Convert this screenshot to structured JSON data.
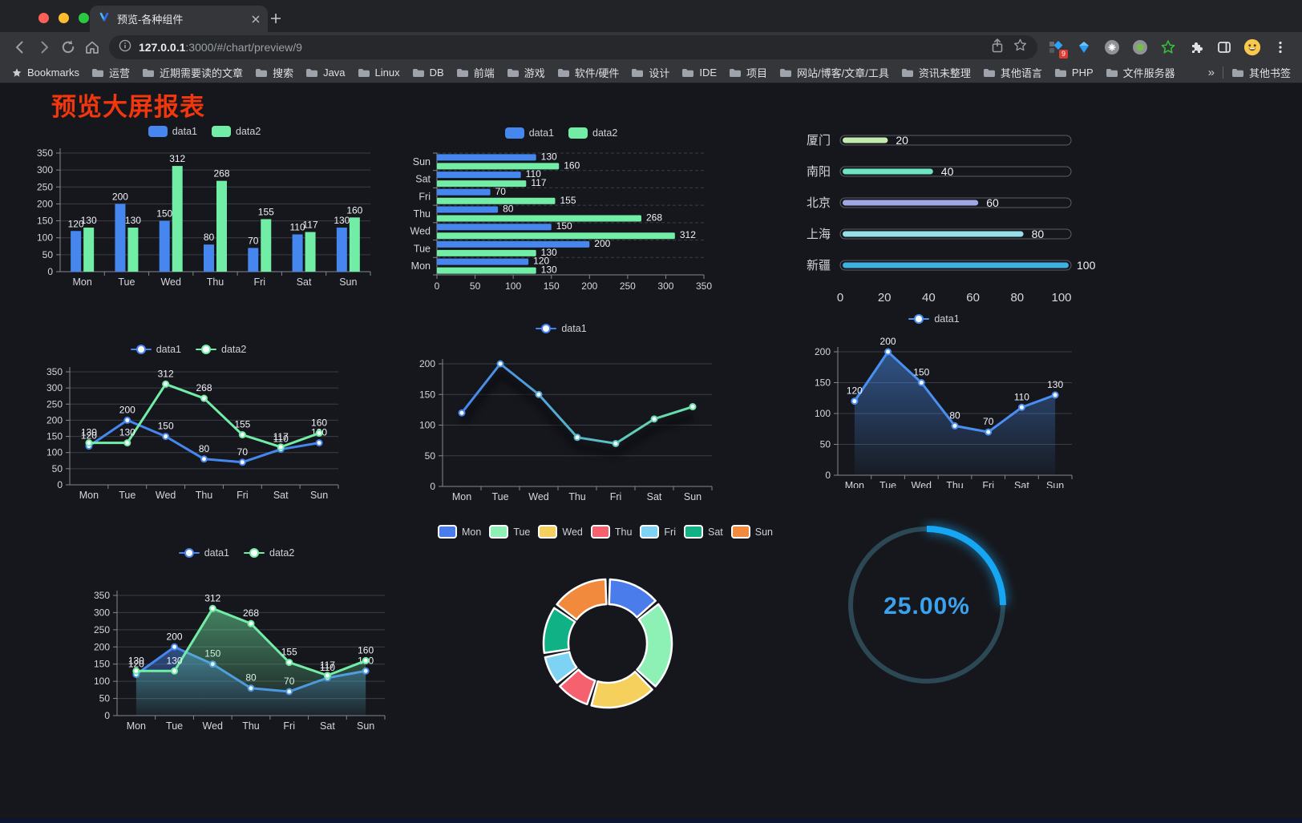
{
  "browser": {
    "tab_title": "预览-各种组件",
    "url_host": "127.0.0.1",
    "url_rest": ":3000/#/chart/preview/9",
    "bookmarks_label": "Bookmarks",
    "bookmarks": [
      "运营",
      "近期需要读的文章",
      "搜索",
      "Java",
      "Linux",
      "DB",
      "前端",
      "游戏",
      "软件/硬件",
      "设计",
      "IDE",
      "项目",
      "网站/博客/文章/工具",
      "资讯未整理",
      "其他语言",
      "PHP",
      "文件服务器"
    ],
    "bookmarks_overflow": "»",
    "other_bookmarks_label": "其他书签",
    "extension_badge": "9"
  },
  "page": {
    "title": "预览大屏报表",
    "title_color": "#f2360d"
  },
  "chart_data": [
    {
      "id": "bar-grouped",
      "type": "bar",
      "categories": [
        "Mon",
        "Tue",
        "Wed",
        "Thu",
        "Fri",
        "Sat",
        "Sun"
      ],
      "series": [
        {
          "name": "data1",
          "color": "#4687ef",
          "values": [
            120,
            200,
            150,
            80,
            70,
            110,
            130
          ]
        },
        {
          "name": "data2",
          "color": "#72eda6",
          "values": [
            130,
            130,
            312,
            268,
            155,
            117,
            160
          ]
        }
      ],
      "ylim": [
        0,
        350
      ],
      "ytick_step": 50,
      "value_labels": true,
      "legend_position": "top",
      "grid": true
    },
    {
      "id": "bar-horizontal",
      "type": "bar-horizontal",
      "categories": [
        "Mon",
        "Tue",
        "Wed",
        "Thu",
        "Fri",
        "Sat",
        "Sun"
      ],
      "series": [
        {
          "name": "data1",
          "color": "#4687ef",
          "values": [
            120,
            200,
            150,
            80,
            70,
            110,
            130
          ]
        },
        {
          "name": "data2",
          "color": "#72eda6",
          "values": [
            130,
            130,
            312,
            268,
            155,
            117,
            160
          ]
        }
      ],
      "xlim": [
        0,
        350
      ],
      "xtick_step": 50,
      "value_labels": true,
      "legend_position": "top",
      "grid": true
    },
    {
      "id": "city-progress",
      "type": "progress-bar",
      "items": [
        {
          "name": "厦门",
          "value": 20,
          "color": "#c4ebad"
        },
        {
          "name": "南阳",
          "value": 40,
          "color": "#6be6c1"
        },
        {
          "name": "北京",
          "value": 60,
          "color": "#a0a7e6"
        },
        {
          "name": "上海",
          "value": 80,
          "color": "#96dee8"
        },
        {
          "name": "新疆",
          "value": 100,
          "color": "#3fb1e3"
        }
      ],
      "xlim": [
        0,
        100
      ],
      "xticks": [
        0,
        20,
        40,
        60,
        80,
        100
      ],
      "value_labels": true
    },
    {
      "id": "line-two",
      "type": "line",
      "categories": [
        "Mon",
        "Tue",
        "Wed",
        "Thu",
        "Fri",
        "Sat",
        "Sun"
      ],
      "series": [
        {
          "name": "data1",
          "color": "#4687ef",
          "values": [
            120,
            200,
            150,
            80,
            70,
            110,
            130
          ]
        },
        {
          "name": "data2",
          "color": "#72eda6",
          "values": [
            130,
            130,
            312,
            268,
            155,
            117,
            160
          ]
        }
      ],
      "ylim": [
        0,
        350
      ],
      "ytick_step": 50,
      "value_labels": true,
      "legend_position": "top",
      "grid": true
    },
    {
      "id": "line-gradient",
      "type": "line",
      "categories": [
        "Mon",
        "Tue",
        "Wed",
        "Thu",
        "Fri",
        "Sat",
        "Sun"
      ],
      "series": [
        {
          "name": "data1",
          "color": "#4584f0",
          "color_end": "#68e6a5",
          "values": [
            120,
            200,
            150,
            80,
            70,
            110,
            130
          ]
        }
      ],
      "ylim": [
        0,
        200
      ],
      "ytick_step": 50,
      "value_labels": false,
      "legend_position": "top",
      "grid": true
    },
    {
      "id": "area-one",
      "type": "area",
      "categories": [
        "Mon",
        "Tue",
        "Wed",
        "Thu",
        "Fri",
        "Sat",
        "Sun"
      ],
      "series": [
        {
          "name": "data1",
          "color": "#4a90f2",
          "values": [
            120,
            200,
            150,
            80,
            70,
            110,
            130
          ]
        }
      ],
      "ylim": [
        0,
        200
      ],
      "ytick_step": 50,
      "value_labels": true,
      "legend_position": "top",
      "grid": true
    },
    {
      "id": "area-two",
      "type": "area",
      "categories": [
        "Mon",
        "Tue",
        "Wed",
        "Thu",
        "Fri",
        "Sat",
        "Sun"
      ],
      "series": [
        {
          "name": "data1",
          "color": "#4687ef",
          "values": [
            120,
            200,
            150,
            80,
            70,
            110,
            130
          ]
        },
        {
          "name": "data2",
          "color": "#72eda6",
          "values": [
            130,
            130,
            312,
            268,
            155,
            117,
            160
          ]
        }
      ],
      "ylim": [
        0,
        350
      ],
      "ytick_step": 50,
      "value_labels": true,
      "legend_position": "top",
      "grid": true
    },
    {
      "id": "donut",
      "type": "pie",
      "legend_position": "top",
      "items": [
        {
          "name": "Mon",
          "value": 120,
          "color": "#4a7ceb"
        },
        {
          "name": "Tue",
          "value": 200,
          "color": "#8df0b4"
        },
        {
          "name": "Wed",
          "value": 150,
          "color": "#f5d05c"
        },
        {
          "name": "Thu",
          "value": 80,
          "color": "#f5616e"
        },
        {
          "name": "Fri",
          "value": 70,
          "color": "#7ed3f4"
        },
        {
          "name": "Sat",
          "value": 110,
          "color": "#10b285"
        },
        {
          "name": "Sun",
          "value": 130,
          "color": "#f28a3d"
        }
      ]
    },
    {
      "id": "gauge",
      "type": "gauge",
      "value": 25,
      "max": 100,
      "display": "25.00%",
      "color": "#17a6f3",
      "track_color": "#2b4854",
      "text_color": "#3ba3ee"
    }
  ]
}
